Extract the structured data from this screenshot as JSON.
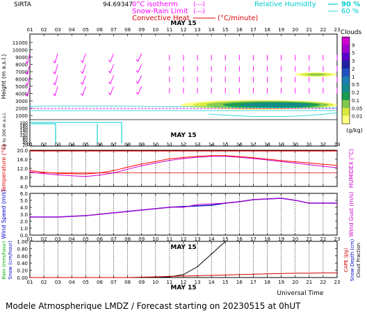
{
  "header": {
    "site": "SIRTA",
    "coord": "94.69347",
    "legend_isotherm": "0°C isotherm",
    "legend_isotherm_style": "(---)",
    "legend_snowrain": "Snow-Rain Limit",
    "legend_snowrain_style": "(---)",
    "legend_convective": "Convective Heat",
    "legend_convective_unit": "(°C/minute)",
    "rh_label": "Relative Humidity",
    "rh_90": "90 %",
    "rh_60": "60 %"
  },
  "footer": {
    "universal_time": "Universal Time",
    "title": "Modele Atmospherique LMDZ / Forecast starting on 20230515 at 0hUT"
  },
  "colors": {
    "magenta": "#ff00ff",
    "cyan": "#00cccc",
    "red": "#e00000",
    "blue": "#0000cc",
    "green": "#00aa00",
    "grid": "#000000"
  },
  "hours": [
    "01",
    "02",
    "03",
    "04",
    "05",
    "06",
    "07",
    "08",
    "09",
    "10",
    "11",
    "12",
    "13",
    "14",
    "15",
    "16",
    "17",
    "18",
    "19",
    "20",
    "21",
    "22",
    "23"
  ],
  "date_label": "MAY 15",
  "chart_data": [
    {
      "type": "heatmap",
      "name": "cloud_panel",
      "ylabel": "Height (m a.s.l.)",
      "ylabel_low": "Up to 200 m a.s.l.",
      "yticks_upper": [
        "11000",
        "10000",
        "9000",
        "8000",
        "7000",
        "6000",
        "5000",
        "4000",
        "3000",
        "2000",
        "1000"
      ],
      "yticks_lower": [
        "200",
        "180",
        "160",
        "140",
        "120",
        "100",
        "80",
        "60",
        "40",
        "20"
      ],
      "colorbar_title": "Clouds",
      "colorbar_unit": "(g/kg)",
      "colorbar_levels": [
        "9",
        "5",
        "3",
        "2",
        "1",
        "0.5",
        "0.2",
        "0.1",
        "0.05",
        "0.01"
      ],
      "colorbar_colors": [
        "#cc00cc",
        "#a000d0",
        "#5a00c8",
        "#2020a0",
        "#2050c0",
        "#1a7fb0",
        "#148a8a",
        "#1a9a50",
        "#80c850",
        "#d8e840",
        "#ffff80"
      ],
      "clouds": [
        {
          "x0": 11.8,
          "x1": 23.0,
          "y0": 1800,
          "y1": 3100,
          "peak": "0.5"
        },
        {
          "x0": 20.0,
          "x1": 23.0,
          "y0": 6300,
          "y1": 6900,
          "peak": "0.05"
        }
      ],
      "isotherm_0C_m": 1950
    },
    {
      "type": "line",
      "name": "temperature",
      "ylabel": "Temperature (°C)",
      "ylabel_right": "HUMIDEX (°C)",
      "yticks": [
        "20.0",
        "16.0",
        "12.0",
        "8.0",
        "4.0"
      ],
      "ylim": [
        4,
        20
      ],
      "x": [
        1,
        2,
        3,
        4,
        5,
        6,
        7,
        8,
        9,
        10,
        11,
        12,
        13,
        14,
        15,
        16,
        17,
        18,
        19,
        20,
        21,
        22,
        23
      ],
      "series": [
        {
          "name": "temperature",
          "color": "#ff0000",
          "values": [
            11.0,
            10.2,
            9.8,
            9.6,
            9.5,
            10.0,
            11.0,
            12.5,
            13.9,
            15.0,
            16.2,
            16.8,
            17.3,
            17.6,
            17.6,
            17.2,
            16.7,
            16.1,
            15.4,
            14.9,
            14.4,
            13.8,
            13.3
          ]
        },
        {
          "name": "humidex",
          "color": "#cc00cc",
          "values": [
            10.4,
            9.6,
            9.1,
            8.7,
            8.4,
            9.0,
            10.0,
            11.6,
            13.1,
            14.3,
            15.5,
            16.3,
            16.9,
            17.3,
            17.3,
            16.9,
            16.3,
            15.7,
            15.0,
            14.3,
            13.6,
            12.9,
            12.3
          ]
        }
      ]
    },
    {
      "type": "line",
      "name": "wind",
      "ylabel": "Wind Speed (m/s)",
      "ylabel_right": "Wind Gust (m/s)",
      "yticks": [
        "6.0",
        "5.0",
        "4.0",
        "3.0",
        "2.0",
        "1.0",
        "0.0"
      ],
      "ylim": [
        0,
        6
      ],
      "x": [
        1,
        2,
        3,
        4,
        5,
        6,
        7,
        8,
        9,
        10,
        11,
        12,
        13,
        14,
        15,
        16,
        17,
        18,
        19,
        20,
        21,
        22,
        23
      ],
      "series": [
        {
          "name": "wind_speed",
          "color": "#0000cc",
          "values": [
            2.6,
            2.6,
            2.6,
            2.7,
            2.8,
            3.0,
            3.2,
            3.4,
            3.6,
            3.8,
            4.0,
            4.1,
            4.2,
            4.3,
            4.6,
            4.8,
            5.1,
            5.2,
            5.3,
            5.0,
            4.6,
            4.6,
            4.6
          ]
        },
        {
          "name": "wind_gust",
          "color": "#cc00cc",
          "values": [
            2.6,
            2.6,
            2.6,
            2.7,
            2.8,
            3.0,
            3.2,
            3.4,
            3.6,
            3.8,
            4.0,
            4.0,
            4.4,
            4.5,
            4.6,
            4.8,
            5.1,
            5.2,
            5.3,
            5.0,
            4.6,
            4.6,
            4.6
          ]
        }
      ],
      "direction_arrows": [
        215,
        215,
        220,
        220,
        225,
        225,
        230,
        230,
        235,
        240,
        240,
        245,
        245,
        250,
        250,
        255,
        255,
        255,
        260,
        260,
        265,
        265,
        265
      ]
    },
    {
      "type": "line",
      "name": "precip",
      "ylabel": "Rain (mm/hour)",
      "ylabel2": "Snow (cm/hour)",
      "ylabel_right": "CAPE (J/g)",
      "ylabel_right2": "Snow Depth (cm)",
      "ylabel_right3": "Cloud Fraction",
      "yticks": [
        "1.00",
        "0.80",
        "0.60",
        "0.40",
        "0.20",
        "0.00"
      ],
      "ylim": [
        0,
        1
      ],
      "x": [
        1,
        2,
        3,
        4,
        5,
        6,
        7,
        8,
        9,
        10,
        11,
        12,
        13,
        14,
        15,
        16,
        17,
        18,
        19,
        20,
        21,
        22,
        23
      ],
      "series": [
        {
          "name": "cloud_fraction",
          "color": "#000000",
          "values": [
            0.0,
            0.0,
            0.0,
            0.0,
            0.0,
            0.0,
            0.0,
            0.0,
            0.0,
            0.0,
            0.02,
            0.08,
            0.3,
            0.65,
            1.0,
            1.0,
            1.0,
            1.0,
            1.0,
            1.0,
            1.0,
            1.0,
            1.0
          ]
        },
        {
          "name": "cape",
          "color": "#cc0000",
          "values": [
            0.0,
            0.0,
            0.0,
            0.0,
            0.0,
            0.0,
            0.0,
            0.0,
            0.01,
            0.02,
            0.03,
            0.04,
            0.05,
            0.06,
            0.07,
            0.08,
            0.09,
            0.1,
            0.11,
            0.12,
            0.12,
            0.13,
            0.13
          ]
        }
      ]
    }
  ]
}
